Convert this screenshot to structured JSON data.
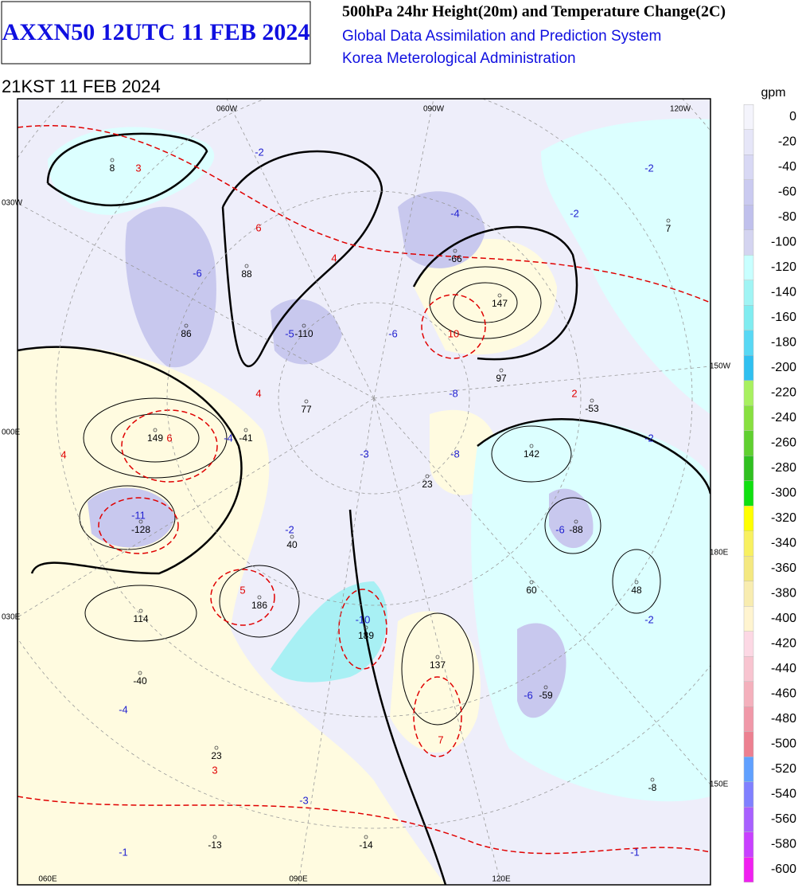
{
  "header": {
    "title": "AXXN50 12UTC 11 FEB 2024",
    "product": "500hPa 24hr Height(20m) and Temperature Change(2C)",
    "system": "Global Data Assimilation and Prediction System",
    "agency": "Korea Meterological Administration",
    "valid_time": "21KST 11 FEB 2024"
  },
  "colorbar": {
    "unit": "gpm",
    "levels": [
      0,
      -20,
      -40,
      -60,
      -80,
      -100,
      -120,
      -140,
      -160,
      -180,
      -200,
      -220,
      -240,
      -260,
      -280,
      -300,
      -320,
      -340,
      -360,
      -380,
      -400,
      -420,
      -440,
      -460,
      -480,
      -500,
      -520,
      -540,
      -560,
      -580,
      -600
    ],
    "colors": [
      "#f4f4fc",
      "#e6e6f8",
      "#d8d8f4",
      "#cacaf0",
      "#c0c0ec",
      "#d4d4f0",
      "#c8ffff",
      "#a0f4f4",
      "#80ecf0",
      "#58d8f4",
      "#30c0f0",
      "#a8f060",
      "#88e040",
      "#60d030",
      "#30c020",
      "#10e010",
      "#ffff00",
      "#f8f060",
      "#f4e880",
      "#f8ecb0",
      "#fff4d0",
      "#fcd8e4",
      "#f8c4d0",
      "#f4b0bc",
      "#f098a8",
      "#ec8090",
      "#60a0ff",
      "#8080ff",
      "#a860ff",
      "#c840ff",
      "#f020f0"
    ]
  },
  "map": {
    "lon_labels": [
      "060W",
      "090W",
      "120W",
      "030W",
      "000E",
      "030E",
      "150W",
      "180E",
      "150E",
      "060E",
      "090E",
      "120E"
    ],
    "height_labels": [
      8,
      88,
      86,
      -110,
      -66,
      147,
      97,
      -53,
      149,
      -41,
      77,
      142,
      23,
      -128,
      40,
      -88,
      186,
      60,
      48,
      114,
      189,
      137,
      -40,
      -59,
      23,
      -13,
      -14,
      -8,
      7
    ],
    "warm_labels": [
      3,
      6,
      4,
      10,
      6,
      4,
      4,
      2,
      5,
      7,
      3
    ],
    "cold_labels": [
      -2,
      -6,
      -5,
      -6,
      -4,
      -2,
      -2,
      -8,
      -4,
      -3,
      -8,
      -2,
      -11,
      -2,
      -6,
      -10,
      -2,
      -6,
      -4,
      -3,
      -1,
      -1
    ]
  }
}
